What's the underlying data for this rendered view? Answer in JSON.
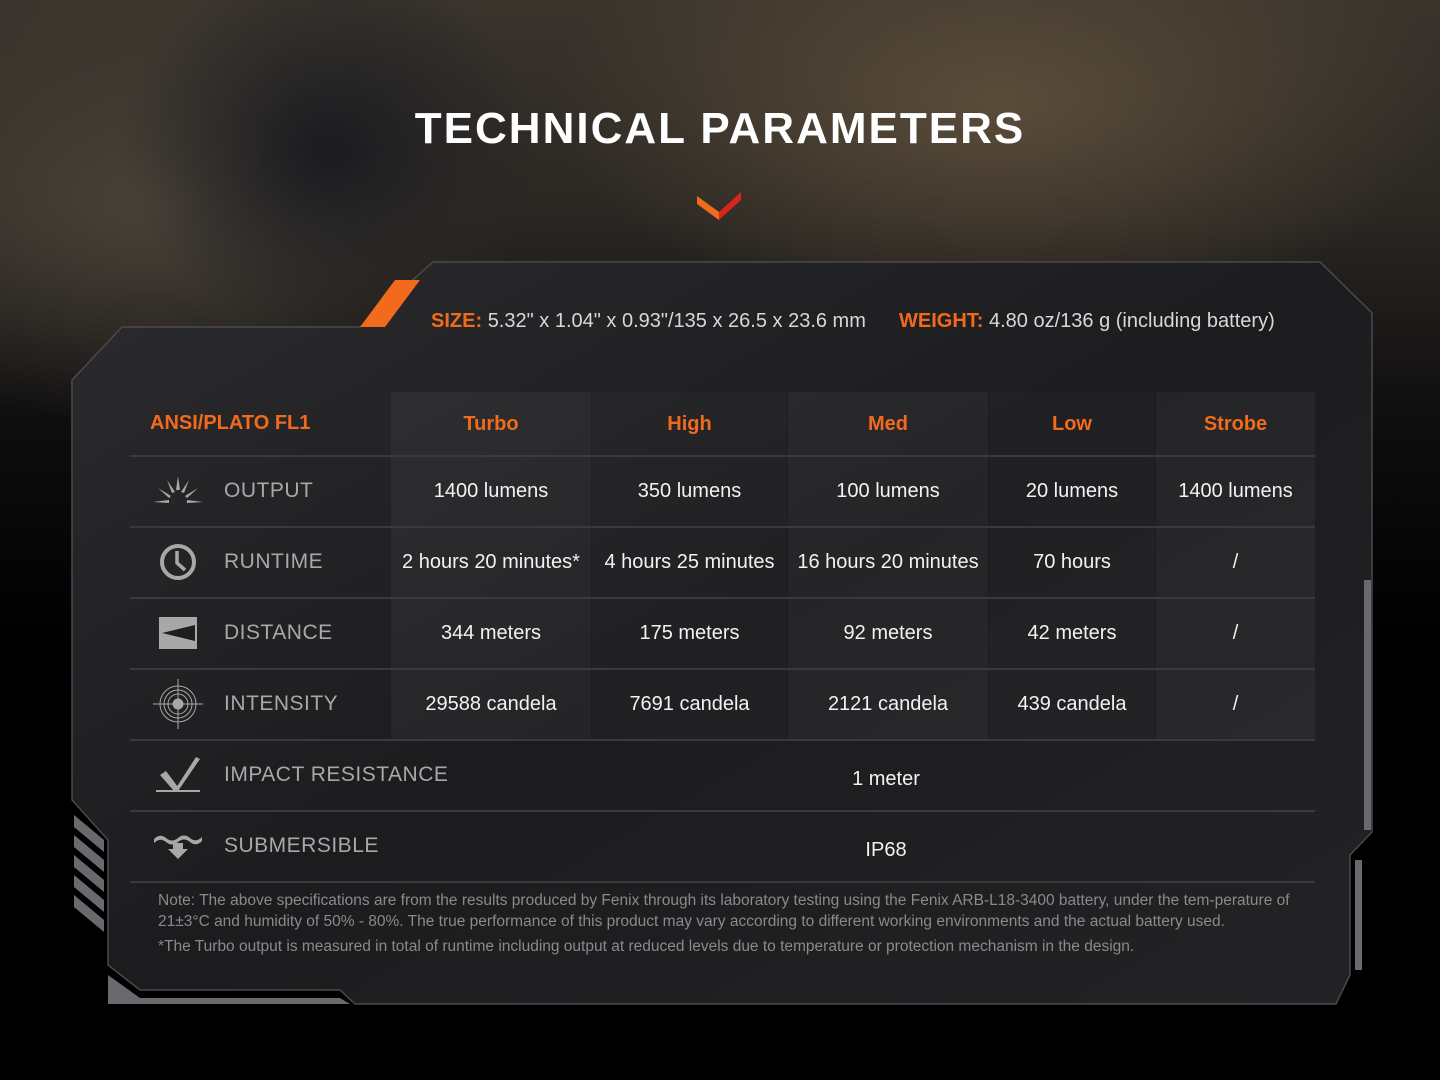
{
  "title": "TECHNICAL PARAMETERS",
  "size": {
    "label": "SIZE:",
    "value": "5.32\" x 1.04\" x 0.93\"/135 x 26.5 x 23.6 mm"
  },
  "weight": {
    "label": "WEIGHT:",
    "value": "4.80 oz/136 g (including battery)"
  },
  "colors": {
    "accent": "#f26a1b",
    "text": "#f2f2f2",
    "label": "#a8a8a8"
  },
  "table": {
    "header": [
      "ANSI/PLATO FL1",
      "Turbo",
      "High",
      "Med",
      "Low",
      "Strobe"
    ],
    "rows": [
      {
        "icon": "sunburst-icon",
        "label": "OUTPUT",
        "values": [
          "1400 lumens",
          "350 lumens",
          "100 lumens",
          "20 lumens",
          "1400 lumens"
        ]
      },
      {
        "icon": "clock-icon",
        "label": "RUNTIME",
        "values": [
          "2 hours 20 minutes*",
          "4 hours 25 minutes",
          "16 hours 20 minutes",
          "70 hours",
          "/"
        ]
      },
      {
        "icon": "beam-distance-icon",
        "label": "DISTANCE",
        "values": [
          "344 meters",
          "175 meters",
          "92 meters",
          "42 meters",
          "/"
        ]
      },
      {
        "icon": "target-icon",
        "label": "INTENSITY",
        "values": [
          "29588 candela",
          "7691 candela",
          "2121 candela",
          "439 candela",
          "/"
        ]
      },
      {
        "icon": "impact-icon",
        "label": "IMPACT RESISTANCE",
        "value": "1 meter"
      },
      {
        "icon": "submersible-icon",
        "label": "SUBMERSIBLE",
        "value": "IP68"
      }
    ]
  },
  "note": "Note: The above specifications are from the results produced by Fenix through its laboratory testing using the Fenix ARB-L18-3400 battery, under the tem-perature of 21±3°C and humidity of 50% - 80%. The true performance of this product may vary according to different working environments and the actual battery used.",
  "footnote": "*The Turbo output is measured in total of runtime including output at reduced levels due to temperature or protection mechanism in the design."
}
